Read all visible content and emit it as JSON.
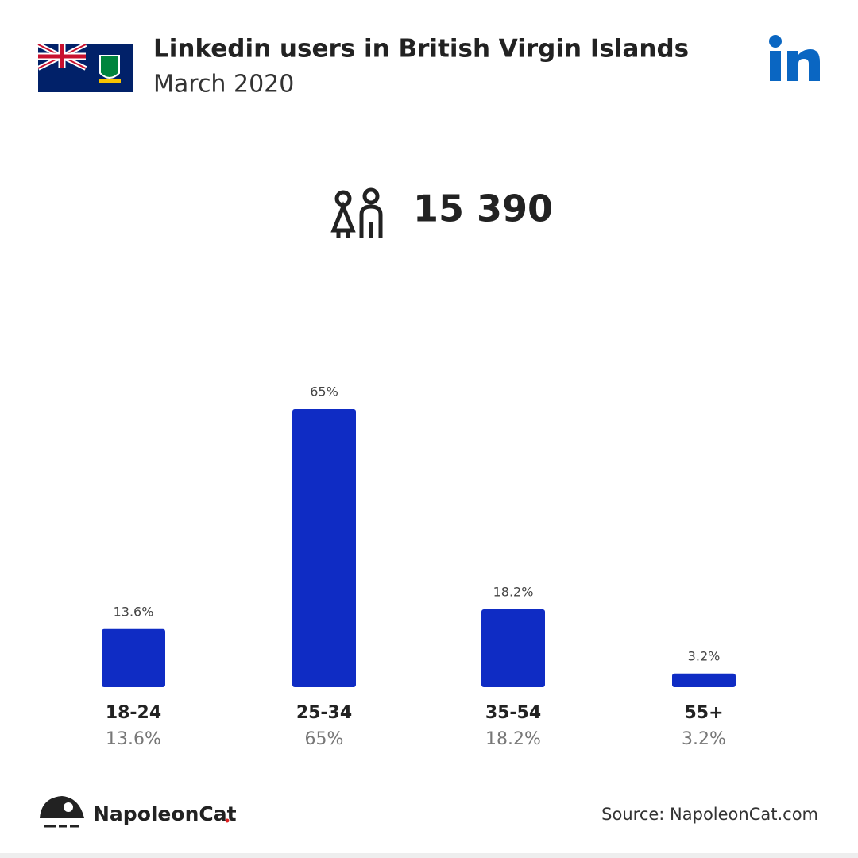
{
  "chart_data": {
    "type": "bar",
    "title": "Linkedin users in British Virgin Islands",
    "subtitle": "March 2020",
    "total": "15 390",
    "categories": [
      "18-24",
      "25-34",
      "35-54",
      "55+"
    ],
    "values": [
      13.6,
      65,
      18.2,
      3.2
    ],
    "value_labels": [
      "13.6%",
      "65%",
      "18.2%",
      "3.2%"
    ],
    "color": "#0f2cc4",
    "brand": "NapoleonCat",
    "source": "Source: NapoleonCat.com"
  }
}
